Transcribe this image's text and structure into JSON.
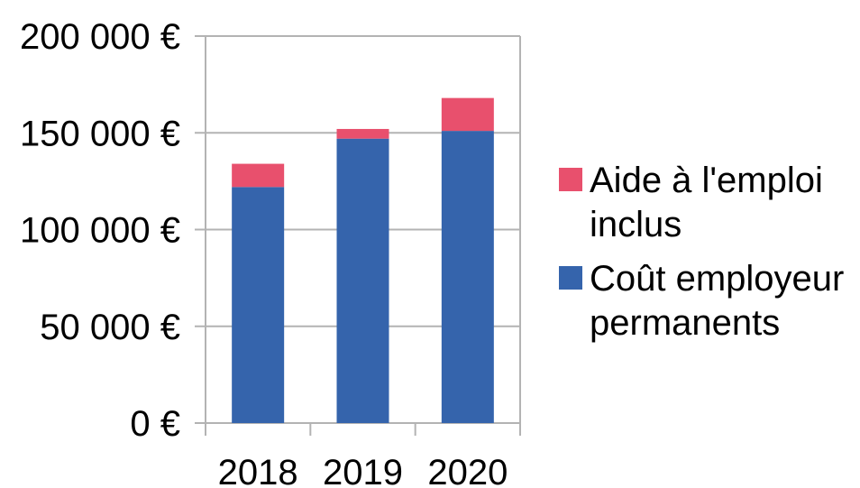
{
  "chart_data": {
    "type": "bar",
    "stacked": true,
    "categories": [
      "2018",
      "2019",
      "2020"
    ],
    "series": [
      {
        "name": "Coût employeur permanents",
        "values": [
          122000,
          147000,
          151000
        ],
        "color": "#3564ac"
      },
      {
        "name": "Aide à l'emploi inclus",
        "values": [
          12000,
          5000,
          17000
        ],
        "color": "#e8506d"
      }
    ],
    "y_ticks": [
      "0 €",
      "50 000 €",
      "100 000 €",
      "150 000 €",
      "200 000 €"
    ],
    "ylim": [
      0,
      200000
    ],
    "grid": true,
    "legend_position": "right",
    "legend": [
      {
        "line1": "Aide à l'emploi",
        "line2": "inclus",
        "color": "#e8506d"
      },
      {
        "line1": "Coût employeur",
        "line2": "permanents",
        "color": "#3564ac"
      }
    ],
    "title": "",
    "xlabel": "",
    "ylabel": ""
  }
}
